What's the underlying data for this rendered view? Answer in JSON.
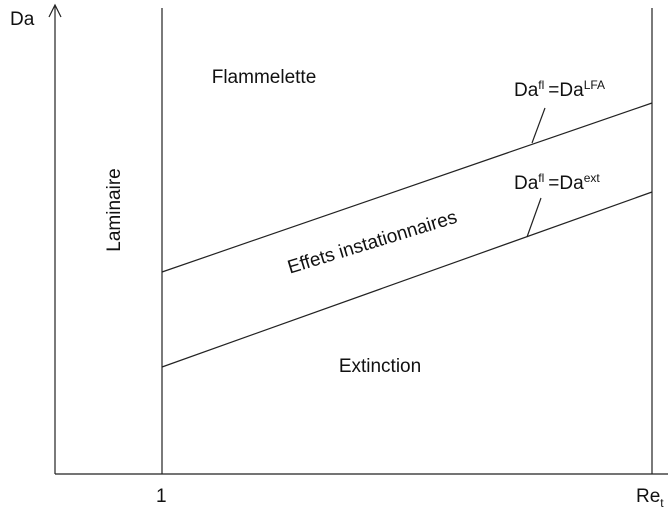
{
  "axes": {
    "y_label": "Da",
    "x_label": "Re",
    "x_label_sub": "t",
    "x_tick": "1"
  },
  "regions": {
    "laminar": "Laminaire",
    "flamelet": "Flammelette",
    "unsteady": "Effets instationnaires",
    "extinction": "Extinction"
  },
  "boundaries": [
    {
      "lhs": "Da",
      "lhs_sup": "fl",
      "rhs": "=Da",
      "rhs_sup": "LFA"
    },
    {
      "lhs": "Da",
      "lhs_sup": "fl",
      "rhs": "=Da",
      "rhs_sup": "ext"
    }
  ]
}
